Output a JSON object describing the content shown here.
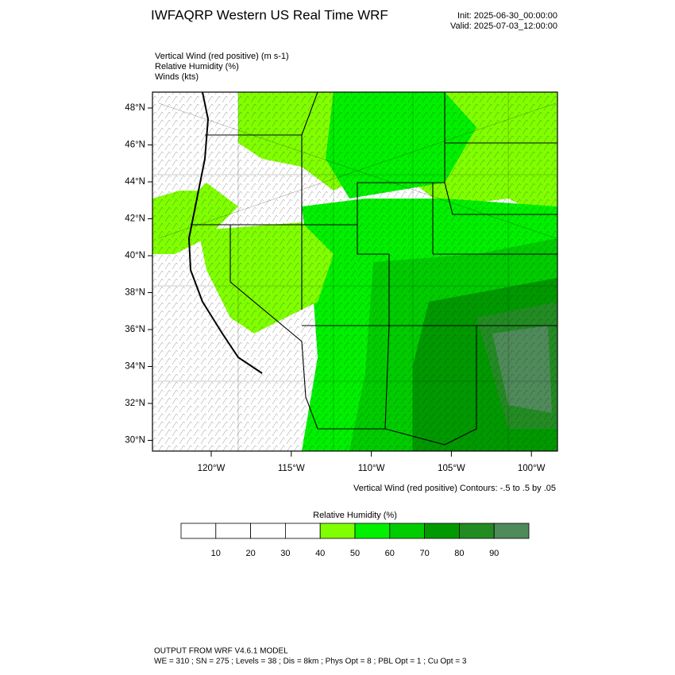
{
  "header": {
    "title": "IWFAQRP Western US Real Time WRF",
    "init": "Init: 2025-06-30_00:00:00",
    "valid": "Valid: 2025-07-03_12:00:00"
  },
  "fields": [
    "Vertical Wind (red positive)   (m s-1)",
    "Relative Humidity   (%)",
    "Winds   (kts)"
  ],
  "map": {
    "lat_labels": [
      "48°N",
      "46°N",
      "44°N",
      "42°N",
      "40°N",
      "38°N",
      "36°N",
      "34°N",
      "32°N",
      "30°N"
    ],
    "lon_labels": [
      "120°W",
      "115°W",
      "110°W",
      "105°W",
      "100°W"
    ],
    "contour_note": "Vertical Wind (red positive) Contours: -.5 to .5 by .05"
  },
  "colorbar": {
    "title": "Relative Humidity  (%)",
    "labels": [
      "10",
      "20",
      "30",
      "40",
      "50",
      "60",
      "70",
      "80",
      "90"
    ],
    "colors": [
      "#ffffff",
      "#ffffff",
      "#ffffff",
      "#ffffff",
      "#80ff00",
      "#00f000",
      "#00cc00",
      "#009900",
      "#228b22",
      "#4f8a5a"
    ]
  },
  "footer": [
    "OUTPUT FROM WRF V4.6.1 MODEL",
    "WE = 310 ; SN = 275 ; Levels = 38 ; Dis = 8km ; Phys Opt = 8 ; PBL Opt = 1 ; Cu Opt = 3"
  ]
}
